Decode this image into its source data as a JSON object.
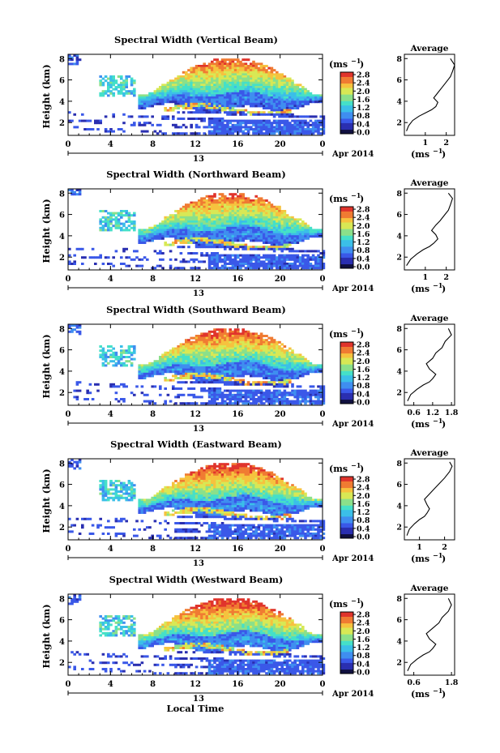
{
  "figure": {
    "local_time_label": "Local Time",
    "date_label": "Apr 2014",
    "day_label": "13",
    "units_label": "(ms",
    "units_exp": "−1",
    "units_close": ")",
    "average_title": "Average"
  },
  "colors": {
    "colormap": [
      "#101040",
      "#2a2fb0",
      "#3a58e8",
      "#3f8ef0",
      "#3bbfe8",
      "#45e0c8",
      "#8be08a",
      "#d8e855",
      "#f6c23e",
      "#f07b32",
      "#e0342c"
    ]
  },
  "chart_data": [
    {
      "type": "heatmap",
      "title": "Spectral Width (Vertical Beam)",
      "ylabel": "Height (km)",
      "x_ticks": [
        "0",
        "4",
        "8",
        "12",
        "16",
        "20",
        "0"
      ],
      "xlim": [
        0,
        24
      ],
      "y_ticks": [
        "2",
        "4",
        "6",
        "8"
      ],
      "ylim": [
        0.8,
        8.4
      ],
      "colorbar_ticks": [
        "0.0",
        "0.4",
        "0.8",
        "1.2",
        "1.6",
        "2.0",
        "2.4",
        "2.8"
      ],
      "clim": [
        0,
        3.0
      ],
      "average_profile": {
        "x_ticks": [
          "1",
          "2"
        ],
        "xlim": [
          0,
          2.4
        ],
        "points": [
          [
            0.1,
            1.2
          ],
          [
            0.2,
            1.7
          ],
          [
            0.4,
            2.2
          ],
          [
            0.7,
            2.6
          ],
          [
            1.0,
            2.9
          ],
          [
            1.3,
            3.2
          ],
          [
            1.5,
            3.5
          ],
          [
            1.6,
            3.9
          ],
          [
            1.4,
            4.3
          ],
          [
            1.6,
            4.8
          ],
          [
            1.8,
            5.3
          ],
          [
            2.0,
            5.8
          ],
          [
            2.2,
            6.3
          ],
          [
            2.3,
            6.8
          ],
          [
            2.4,
            7.4
          ],
          [
            2.2,
            8.0
          ]
        ]
      }
    },
    {
      "type": "heatmap",
      "title": "Spectral Width (Northward Beam)",
      "ylabel": "Height (km)",
      "x_ticks": [
        "0",
        "4",
        "8",
        "12",
        "16",
        "20",
        "0"
      ],
      "xlim": [
        0,
        24
      ],
      "y_ticks": [
        "2",
        "4",
        "6",
        "8"
      ],
      "ylim": [
        0.8,
        8.4
      ],
      "colorbar_ticks": [
        "0.0",
        "0.4",
        "0.8",
        "1.2",
        "1.6",
        "2.0",
        "2.4",
        "2.8"
      ],
      "clim": [
        0,
        3.0
      ],
      "average_profile": {
        "x_ticks": [
          "1",
          "2"
        ],
        "xlim": [
          0,
          2.4
        ],
        "points": [
          [
            0.1,
            1.2
          ],
          [
            0.3,
            1.8
          ],
          [
            0.6,
            2.3
          ],
          [
            0.9,
            2.7
          ],
          [
            1.2,
            3.0
          ],
          [
            1.4,
            3.3
          ],
          [
            1.6,
            3.7
          ],
          [
            1.5,
            4.1
          ],
          [
            1.3,
            4.5
          ],
          [
            1.5,
            5.0
          ],
          [
            1.7,
            5.4
          ],
          [
            1.9,
            5.9
          ],
          [
            2.1,
            6.4
          ],
          [
            2.2,
            6.9
          ],
          [
            2.3,
            7.5
          ],
          [
            2.1,
            8.0
          ]
        ]
      }
    },
    {
      "type": "heatmap",
      "title": "Spectral Width (Southward Beam)",
      "ylabel": "Height (km)",
      "x_ticks": [
        "0",
        "4",
        "8",
        "12",
        "16",
        "20",
        "0"
      ],
      "xlim": [
        0,
        24
      ],
      "y_ticks": [
        "2",
        "4",
        "6",
        "8"
      ],
      "ylim": [
        0.8,
        8.4
      ],
      "colorbar_ticks": [
        "0.0",
        "0.4",
        "0.8",
        "1.2",
        "1.6",
        "2.0",
        "2.4",
        "2.8"
      ],
      "clim": [
        0,
        3.0
      ],
      "average_profile": {
        "x_ticks": [
          "0.6",
          "1.2",
          "1.8"
        ],
        "xlim": [
          0.3,
          1.9
        ],
        "points": [
          [
            0.4,
            1.2
          ],
          [
            0.5,
            1.8
          ],
          [
            0.7,
            2.3
          ],
          [
            0.9,
            2.7
          ],
          [
            1.1,
            3.0
          ],
          [
            1.2,
            3.3
          ],
          [
            1.3,
            3.7
          ],
          [
            1.1,
            4.2
          ],
          [
            1.0,
            4.7
          ],
          [
            1.2,
            5.2
          ],
          [
            1.3,
            5.7
          ],
          [
            1.5,
            6.2
          ],
          [
            1.6,
            6.8
          ],
          [
            1.8,
            7.4
          ],
          [
            1.7,
            8.0
          ]
        ]
      }
    },
    {
      "type": "heatmap",
      "title": "Spectral Width (Eastward Beam)",
      "ylabel": "Height (km)",
      "x_ticks": [
        "0",
        "4",
        "8",
        "12",
        "16",
        "20",
        "0"
      ],
      "xlim": [
        0,
        24
      ],
      "y_ticks": [
        "2",
        "4",
        "6",
        "8"
      ],
      "ylim": [
        0.8,
        8.4
      ],
      "colorbar_ticks": [
        "0.0",
        "0.4",
        "0.8",
        "1.2",
        "1.6",
        "2.0",
        "2.4",
        "2.8"
      ],
      "clim": [
        0,
        3.0
      ],
      "average_profile": {
        "x_ticks": [
          "1",
          "2"
        ],
        "xlim": [
          0.4,
          2.4
        ],
        "points": [
          [
            0.5,
            1.2
          ],
          [
            0.6,
            1.8
          ],
          [
            0.8,
            2.3
          ],
          [
            1.0,
            2.7
          ],
          [
            1.2,
            3.0
          ],
          [
            1.3,
            3.3
          ],
          [
            1.4,
            3.7
          ],
          [
            1.3,
            4.1
          ],
          [
            1.2,
            4.6
          ],
          [
            1.4,
            5.1
          ],
          [
            1.6,
            5.6
          ],
          [
            1.8,
            6.1
          ],
          [
            2.0,
            6.6
          ],
          [
            2.2,
            7.2
          ],
          [
            2.3,
            7.7
          ],
          [
            2.2,
            8.1
          ]
        ]
      }
    },
    {
      "type": "heatmap",
      "title": "Spectral Width (Westward Beam)",
      "ylabel": "Height (km)",
      "x_ticks": [
        "0",
        "4",
        "8",
        "12",
        "16",
        "20",
        "0"
      ],
      "xlim": [
        0,
        24
      ],
      "y_ticks": [
        "2",
        "4",
        "6",
        "8"
      ],
      "ylim": [
        0.8,
        8.4
      ],
      "colorbar_ticks": [
        "0.0",
        "0.4",
        "0.8",
        "1.2",
        "1.6",
        "2.0",
        "2.4",
        "2.8"
      ],
      "clim": [
        0,
        3.0
      ],
      "average_profile": {
        "x_ticks": [
          "0.6",
          "1.8"
        ],
        "xlim": [
          0.3,
          1.9
        ],
        "points": [
          [
            0.4,
            1.2
          ],
          [
            0.5,
            1.8
          ],
          [
            0.7,
            2.3
          ],
          [
            0.9,
            2.7
          ],
          [
            1.1,
            3.0
          ],
          [
            1.2,
            3.3
          ],
          [
            1.3,
            3.7
          ],
          [
            1.1,
            4.2
          ],
          [
            1.0,
            4.7
          ],
          [
            1.2,
            5.2
          ],
          [
            1.4,
            5.7
          ],
          [
            1.5,
            6.2
          ],
          [
            1.7,
            6.8
          ],
          [
            1.8,
            7.4
          ],
          [
            1.7,
            8.0
          ]
        ]
      }
    }
  ]
}
